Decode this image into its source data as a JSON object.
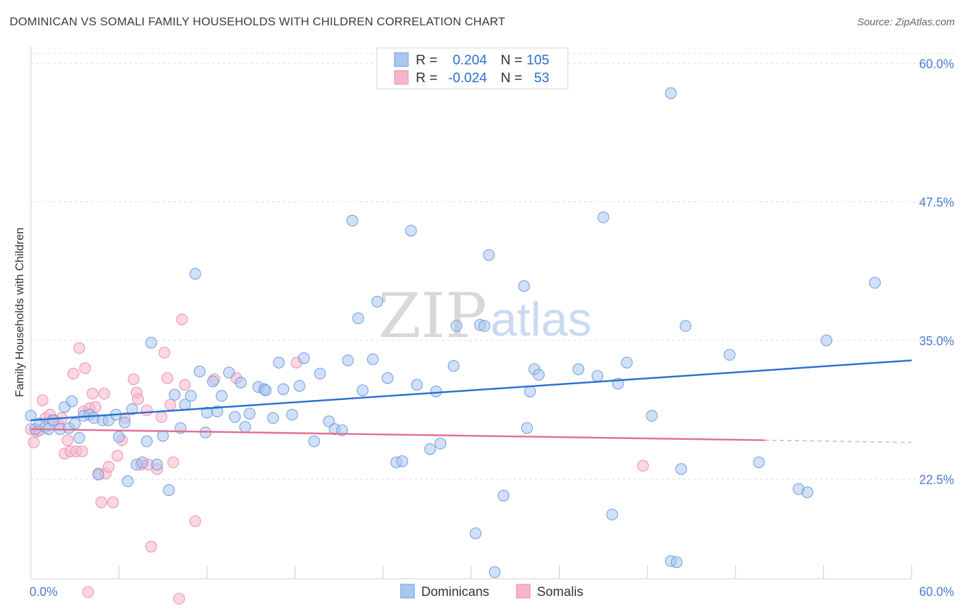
{
  "header": {
    "title": "DOMINICAN VS SOMALI FAMILY HOUSEHOLDS WITH CHILDREN CORRELATION CHART",
    "source": "Source: ZipAtlas.com"
  },
  "watermark": {
    "zip": "ZIP",
    "atlas": "atlas"
  },
  "colors": {
    "blue_fill": "#a9c7ef",
    "blue_stroke": "#6b9be0",
    "blue_line": "#2a6fd0",
    "pink_fill": "#f5b6cb",
    "pink_stroke": "#ec8fae",
    "pink_line": "#e66c97",
    "grid": "#dddddd",
    "tick_text": "#4a7bd0"
  },
  "legend": {
    "rows": [
      {
        "r_label": "R =",
        "r_value": "0.204",
        "n_label": "N =",
        "n_value": "105"
      },
      {
        "r_label": "R =",
        "r_value": "-0.024",
        "n_label": "N =",
        "n_value": "53"
      }
    ]
  },
  "bottom_legend": {
    "series_a": "Dominicans",
    "series_b": "Somalis"
  },
  "chart_data": {
    "type": "scatter",
    "title": "DOMINICAN VS SOMALI FAMILY HOUSEHOLDS WITH CHILDREN CORRELATION CHART",
    "xlabel": "",
    "ylabel": "Family Households with Children",
    "xlim": [
      0,
      60
    ],
    "ylim": [
      13.5,
      61.5
    ],
    "x_tick_labels": [
      "0.0%",
      "60.0%"
    ],
    "y_ticks": [
      22.5,
      35.0,
      47.5,
      60.0
    ],
    "y_tick_labels": [
      "22.5%",
      "35.0%",
      "47.5%",
      "60.0%"
    ],
    "grid": true,
    "series": [
      {
        "name": "Dominicans",
        "R": 0.204,
        "N": 105,
        "trend": {
          "x": [
            0,
            60
          ],
          "y": [
            27.8,
            33.2
          ]
        },
        "points": [
          [
            0.0,
            28.2
          ],
          [
            0.3,
            27.0
          ],
          [
            0.6,
            27.5
          ],
          [
            1.0,
            27.2
          ],
          [
            1.2,
            27.0
          ],
          [
            1.5,
            27.8
          ],
          [
            2.0,
            27.0
          ],
          [
            2.3,
            29.0
          ],
          [
            2.6,
            27.1
          ],
          [
            2.8,
            29.5
          ],
          [
            3.0,
            27.5
          ],
          [
            3.3,
            26.2
          ],
          [
            3.6,
            28.2
          ],
          [
            4.0,
            28.3
          ],
          [
            4.3,
            28.0
          ],
          [
            4.6,
            22.9
          ],
          [
            4.9,
            27.8
          ],
          [
            5.3,
            27.8
          ],
          [
            5.8,
            28.3
          ],
          [
            6.0,
            26.3
          ],
          [
            6.4,
            27.6
          ],
          [
            6.6,
            22.3
          ],
          [
            6.9,
            28.8
          ],
          [
            7.2,
            23.8
          ],
          [
            7.6,
            24.0
          ],
          [
            7.9,
            25.9
          ],
          [
            8.2,
            34.8
          ],
          [
            8.6,
            23.8
          ],
          [
            9.0,
            26.4
          ],
          [
            9.4,
            21.5
          ],
          [
            9.8,
            30.1
          ],
          [
            10.2,
            27.1
          ],
          [
            10.5,
            29.2
          ],
          [
            10.9,
            30.0
          ],
          [
            11.2,
            41.0
          ],
          [
            11.5,
            32.2
          ],
          [
            11.9,
            26.7
          ],
          [
            12.4,
            31.3
          ],
          [
            12.7,
            28.6
          ],
          [
            13.0,
            30.0
          ],
          [
            13.5,
            32.1
          ],
          [
            13.9,
            28.1
          ],
          [
            14.3,
            31.2
          ],
          [
            14.6,
            27.2
          ],
          [
            14.9,
            28.4
          ],
          [
            15.5,
            30.8
          ],
          [
            15.9,
            30.6
          ],
          [
            16.5,
            28.0
          ],
          [
            16.9,
            33.0
          ],
          [
            17.2,
            30.6
          ],
          [
            17.8,
            28.3
          ],
          [
            18.3,
            30.9
          ],
          [
            18.6,
            33.4
          ],
          [
            19.3,
            25.9
          ],
          [
            19.7,
            32.0
          ],
          [
            20.3,
            27.7
          ],
          [
            20.7,
            27.0
          ],
          [
            21.2,
            26.9
          ],
          [
            21.6,
            33.2
          ],
          [
            21.9,
            45.8
          ],
          [
            22.3,
            37.0
          ],
          [
            22.6,
            30.5
          ],
          [
            23.3,
            33.3
          ],
          [
            23.6,
            38.5
          ],
          [
            24.3,
            31.6
          ],
          [
            24.9,
            24.0
          ],
          [
            25.3,
            24.1
          ],
          [
            25.9,
            44.9
          ],
          [
            26.3,
            31.0
          ],
          [
            27.2,
            25.2
          ],
          [
            27.6,
            30.4
          ],
          [
            27.9,
            25.7
          ],
          [
            28.8,
            32.7
          ],
          [
            29.0,
            36.3
          ],
          [
            30.3,
            17.6
          ],
          [
            30.6,
            36.4
          ],
          [
            30.9,
            36.3
          ],
          [
            31.2,
            42.7
          ],
          [
            31.6,
            14.1
          ],
          [
            32.2,
            21.0
          ],
          [
            33.6,
            39.9
          ],
          [
            33.8,
            27.1
          ],
          [
            34.0,
            30.4
          ],
          [
            34.3,
            32.4
          ],
          [
            34.6,
            31.9
          ],
          [
            37.3,
            32.4
          ],
          [
            38.6,
            31.8
          ],
          [
            39.0,
            46.1
          ],
          [
            39.6,
            19.3
          ],
          [
            40.0,
            31.1
          ],
          [
            40.6,
            33.0
          ],
          [
            42.3,
            28.2
          ],
          [
            43.6,
            57.3
          ],
          [
            43.6,
            15.1
          ],
          [
            44.3,
            23.4
          ],
          [
            44.6,
            36.3
          ],
          [
            47.6,
            33.7
          ],
          [
            49.6,
            24.0
          ],
          [
            52.3,
            21.6
          ],
          [
            52.9,
            21.3
          ],
          [
            54.2,
            35.0
          ],
          [
            57.5,
            40.2
          ],
          [
            44.0,
            15.0
          ],
          [
            16.0,
            30.5
          ],
          [
            12.0,
            28.5
          ]
        ]
      },
      {
        "name": "Somalis",
        "R": -0.024,
        "N": 53,
        "trend": {
          "x": [
            0,
            50
          ],
          "y": [
            27.0,
            26.0
          ]
        },
        "trend_dashed": {
          "x": [
            50,
            60
          ],
          "y": [
            26.0,
            25.8
          ]
        },
        "points": [
          [
            0.0,
            27.0
          ],
          [
            0.2,
            25.8
          ],
          [
            0.4,
            26.8
          ],
          [
            0.6,
            26.9
          ],
          [
            0.8,
            29.6
          ],
          [
            1.0,
            28.0
          ],
          [
            1.3,
            28.3
          ],
          [
            1.6,
            27.8
          ],
          [
            1.9,
            27.4
          ],
          [
            2.1,
            28.0
          ],
          [
            2.3,
            24.8
          ],
          [
            2.5,
            26.0
          ],
          [
            2.7,
            25.0
          ],
          [
            2.9,
            32.0
          ],
          [
            3.1,
            25.0
          ],
          [
            3.3,
            34.3
          ],
          [
            3.6,
            28.6
          ],
          [
            3.7,
            32.5
          ],
          [
            3.9,
            12.3
          ],
          [
            4.0,
            28.9
          ],
          [
            4.2,
            30.2
          ],
          [
            4.4,
            29.0
          ],
          [
            4.6,
            23.0
          ],
          [
            4.8,
            20.4
          ],
          [
            5.0,
            30.2
          ],
          [
            5.1,
            23.0
          ],
          [
            5.3,
            23.6
          ],
          [
            5.6,
            20.4
          ],
          [
            5.9,
            24.6
          ],
          [
            6.2,
            26.0
          ],
          [
            6.4,
            28.0
          ],
          [
            7.0,
            31.5
          ],
          [
            7.2,
            30.3
          ],
          [
            7.3,
            29.7
          ],
          [
            7.5,
            23.8
          ],
          [
            7.9,
            28.7
          ],
          [
            8.2,
            16.4
          ],
          [
            8.0,
            23.8
          ],
          [
            8.6,
            23.4
          ],
          [
            8.9,
            28.1
          ],
          [
            9.1,
            33.9
          ],
          [
            9.3,
            31.6
          ],
          [
            9.5,
            29.2
          ],
          [
            9.7,
            24.0
          ],
          [
            10.1,
            11.7
          ],
          [
            10.3,
            36.9
          ],
          [
            10.5,
            31.0
          ],
          [
            11.2,
            18.7
          ],
          [
            12.5,
            31.5
          ],
          [
            14.0,
            31.6
          ],
          [
            18.1,
            33.0
          ],
          [
            41.7,
            23.7
          ],
          [
            3.5,
            25.0
          ]
        ]
      }
    ]
  }
}
